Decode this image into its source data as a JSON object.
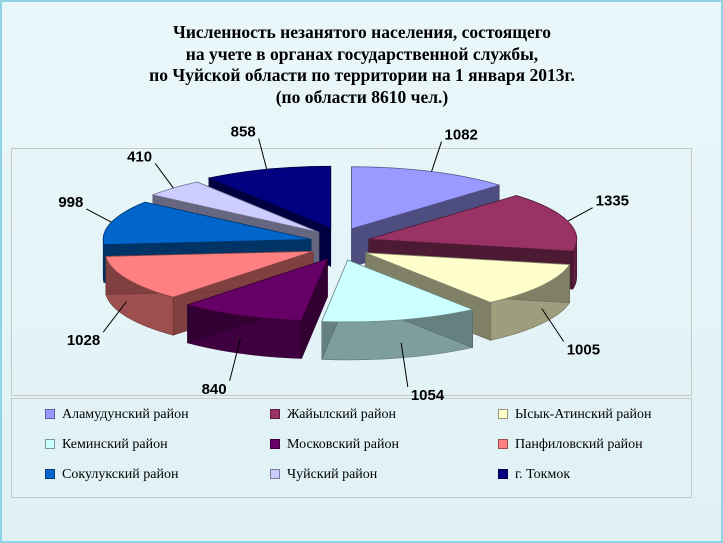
{
  "title_lines": [
    "Численность незанятого населения, состоящего",
    "на учете в органах государственной службы,",
    "по Чуйской области по территории на 1 января 2013г.",
    "(по области 8610 чел.)"
  ],
  "chart_data": {
    "type": "pie",
    "style": "3d-exploded",
    "legend_position": "bottom",
    "series": [
      {
        "name": "Аламудунский район",
        "value": 1082,
        "color": "#9999ff"
      },
      {
        "name": "Жайылский район",
        "value": 1335,
        "color": "#993366"
      },
      {
        "name": "Ысык-Атинский район",
        "value": 1005,
        "color": "#ffffcc"
      },
      {
        "name": "Кеминский район",
        "value": 1054,
        "color": "#ccffff"
      },
      {
        "name": "Московский район",
        "value": 840,
        "color": "#660066"
      },
      {
        "name": "Панфиловский район",
        "value": 1028,
        "color": "#ff8080"
      },
      {
        "name": "Сокулукский район",
        "value": 998,
        "color": "#0066cc"
      },
      {
        "name": "Чуйский район",
        "value": 410,
        "color": "#ccccff"
      },
      {
        "name": "г. Токмок",
        "value": 858,
        "color": "#000080"
      }
    ]
  }
}
